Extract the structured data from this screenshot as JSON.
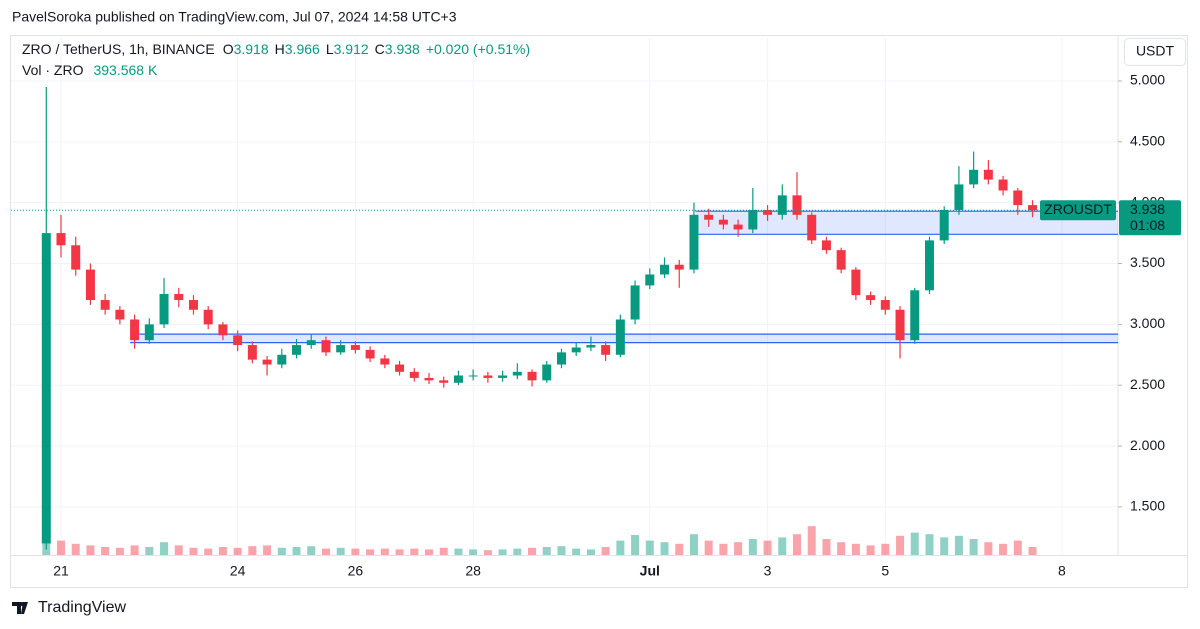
{
  "header": {
    "title": "PavelSoroka published on TradingView.com, Jul 07, 2024 14:58 UTC+3"
  },
  "legend": {
    "symbol": "ZRO / TetherUS, 1h, BINANCE",
    "ohlc": [
      {
        "label": "O",
        "value": 3.918
      },
      {
        "label": "H",
        "value": 3.966
      },
      {
        "label": "L",
        "value": 3.912
      },
      {
        "label": "C",
        "value": 3.938
      }
    ],
    "change": "+0.020 (+0.51%)",
    "volume_label": "Vol · ZRO",
    "volume_value": "393.568 K"
  },
  "currency": "USDT",
  "footer": {
    "brand": "TradingView"
  },
  "chart_data": {
    "type": "candlestick",
    "categories": [
      null,
      "21",
      null,
      null,
      null,
      null,
      null,
      null,
      null,
      null,
      null,
      null,
      null,
      "24",
      null,
      null,
      null,
      null,
      null,
      null,
      null,
      "26",
      null,
      null,
      null,
      null,
      null,
      null,
      null,
      "28",
      null,
      null,
      null,
      null,
      null,
      null,
      null,
      null,
      null,
      null,
      null,
      "Jul",
      null,
      null,
      null,
      null,
      null,
      null,
      null,
      "3",
      null,
      null,
      null,
      null,
      null,
      null,
      null,
      "5",
      null,
      null,
      null,
      null,
      null,
      null,
      null,
      null,
      null,
      null,
      null,
      "8"
    ],
    "open": [
      1.2,
      3.75,
      3.65,
      3.45,
      3.2,
      3.12,
      3.04,
      2.87,
      3.0,
      3.25,
      3.2,
      3.12,
      3.0,
      2.91,
      2.83,
      2.71,
      2.67,
      2.75,
      2.83,
      2.87,
      2.77,
      2.83,
      2.79,
      2.72,
      2.67,
      2.61,
      2.56,
      2.54,
      2.52,
      2.58,
      2.58,
      2.56,
      2.58,
      2.61,
      2.54,
      2.67,
      2.77,
      2.81,
      2.83,
      2.75,
      3.04,
      3.32,
      3.41,
      3.49,
      3.45,
      3.9,
      3.86,
      3.82,
      3.78,
      3.94,
      3.9,
      4.06,
      3.9,
      3.69,
      3.61,
      3.45,
      3.24,
      3.2,
      3.12,
      2.87,
      3.28,
      3.69,
      3.94,
      4.15,
      4.27,
      4.19,
      4.1,
      3.98,
      null,
      null
    ],
    "high": [
      4.95,
      3.9,
      3.72,
      3.5,
      3.25,
      3.15,
      3.08,
      3.05,
      3.38,
      3.3,
      3.24,
      3.15,
      3.02,
      2.95,
      2.86,
      2.74,
      2.8,
      2.88,
      2.92,
      2.9,
      2.87,
      2.86,
      2.82,
      2.75,
      2.7,
      2.64,
      2.6,
      2.57,
      2.62,
      2.63,
      2.61,
      2.62,
      2.68,
      2.63,
      2.7,
      2.8,
      2.85,
      2.9,
      2.86,
      3.08,
      3.36,
      3.46,
      3.55,
      3.53,
      4.0,
      3.95,
      3.9,
      3.86,
      4.12,
      3.98,
      4.15,
      4.25,
      3.92,
      3.72,
      3.63,
      3.47,
      3.27,
      3.23,
      3.15,
      3.3,
      3.72,
      3.97,
      4.3,
      4.42,
      4.35,
      4.22,
      4.12,
      4.02,
      null,
      null
    ],
    "low": [
      1.15,
      3.55,
      3.4,
      3.16,
      3.08,
      3.0,
      2.8,
      2.84,
      2.97,
      3.14,
      3.08,
      2.96,
      2.87,
      2.78,
      2.68,
      2.58,
      2.64,
      2.72,
      2.8,
      2.74,
      2.75,
      2.76,
      2.69,
      2.64,
      2.58,
      2.53,
      2.51,
      2.48,
      2.5,
      2.54,
      2.52,
      2.53,
      2.55,
      2.49,
      2.52,
      2.64,
      2.74,
      2.78,
      2.7,
      2.73,
      3.0,
      3.29,
      3.38,
      3.3,
      3.42,
      3.8,
      3.78,
      3.72,
      3.75,
      3.85,
      3.86,
      3.86,
      3.66,
      3.58,
      3.42,
      3.2,
      3.16,
      3.08,
      2.72,
      2.84,
      3.25,
      3.66,
      3.9,
      4.12,
      4.15,
      4.06,
      3.9,
      3.88,
      null,
      null
    ],
    "close": [
      3.75,
      3.65,
      3.45,
      3.2,
      3.12,
      3.04,
      2.87,
      3.0,
      3.25,
      3.2,
      3.12,
      3.0,
      2.91,
      2.83,
      2.71,
      2.67,
      2.75,
      2.83,
      2.87,
      2.77,
      2.83,
      2.79,
      2.72,
      2.67,
      2.61,
      2.56,
      2.54,
      2.52,
      2.58,
      2.58,
      2.56,
      2.58,
      2.61,
      2.54,
      2.67,
      2.77,
      2.81,
      2.83,
      2.75,
      3.04,
      3.32,
      3.41,
      3.49,
      3.45,
      3.9,
      3.86,
      3.82,
      3.78,
      3.94,
      3.9,
      4.06,
      3.9,
      3.69,
      3.61,
      3.45,
      3.24,
      3.2,
      3.12,
      2.87,
      3.28,
      3.69,
      3.94,
      4.15,
      4.27,
      4.19,
      4.1,
      3.98,
      3.938,
      null,
      null
    ],
    "volume": [
      2500,
      900,
      700,
      600,
      500,
      450,
      600,
      500,
      800,
      600,
      450,
      400,
      500,
      450,
      550,
      600,
      450,
      500,
      550,
      400,
      450,
      400,
      350,
      400,
      350,
      400,
      350,
      450,
      400,
      350,
      300,
      350,
      400,
      450,
      500,
      550,
      400,
      350,
      500,
      900,
      1250,
      900,
      800,
      700,
      1300,
      900,
      700,
      800,
      1000,
      900,
      1100,
      1300,
      1800,
      1000,
      800,
      700,
      600,
      700,
      1200,
      1400,
      1300,
      1100,
      1200,
      1000,
      800,
      700,
      900,
      500,
      null,
      null
    ],
    "up_color": "#089981",
    "down_color": "#f23645",
    "ylim": [
      1.105,
      5.353
    ],
    "yticks": [
      {
        "value": 1.5,
        "label": "1.500"
      },
      {
        "value": 2,
        "label": "2.000"
      },
      {
        "value": 2.5,
        "label": "2.500"
      },
      {
        "value": 3,
        "label": "3.000"
      },
      {
        "value": 3.5,
        "label": "3.500"
      },
      {
        "value": 4,
        "label": "4.000"
      },
      {
        "value": 4.5,
        "label": "4.500"
      },
      {
        "value": 5,
        "label": "5.000"
      }
    ],
    "grid": true,
    "zones": [
      {
        "from": 5.7,
        "low": 2.85,
        "high": 2.92
      },
      {
        "from": 44.1,
        "low": 3.74,
        "high": 3.93
      }
    ],
    "zone_color": "#2962ff",
    "last_price": {
      "symbol": "ZROUSDT",
      "price": 3.938,
      "countdown": "01:08"
    }
  }
}
